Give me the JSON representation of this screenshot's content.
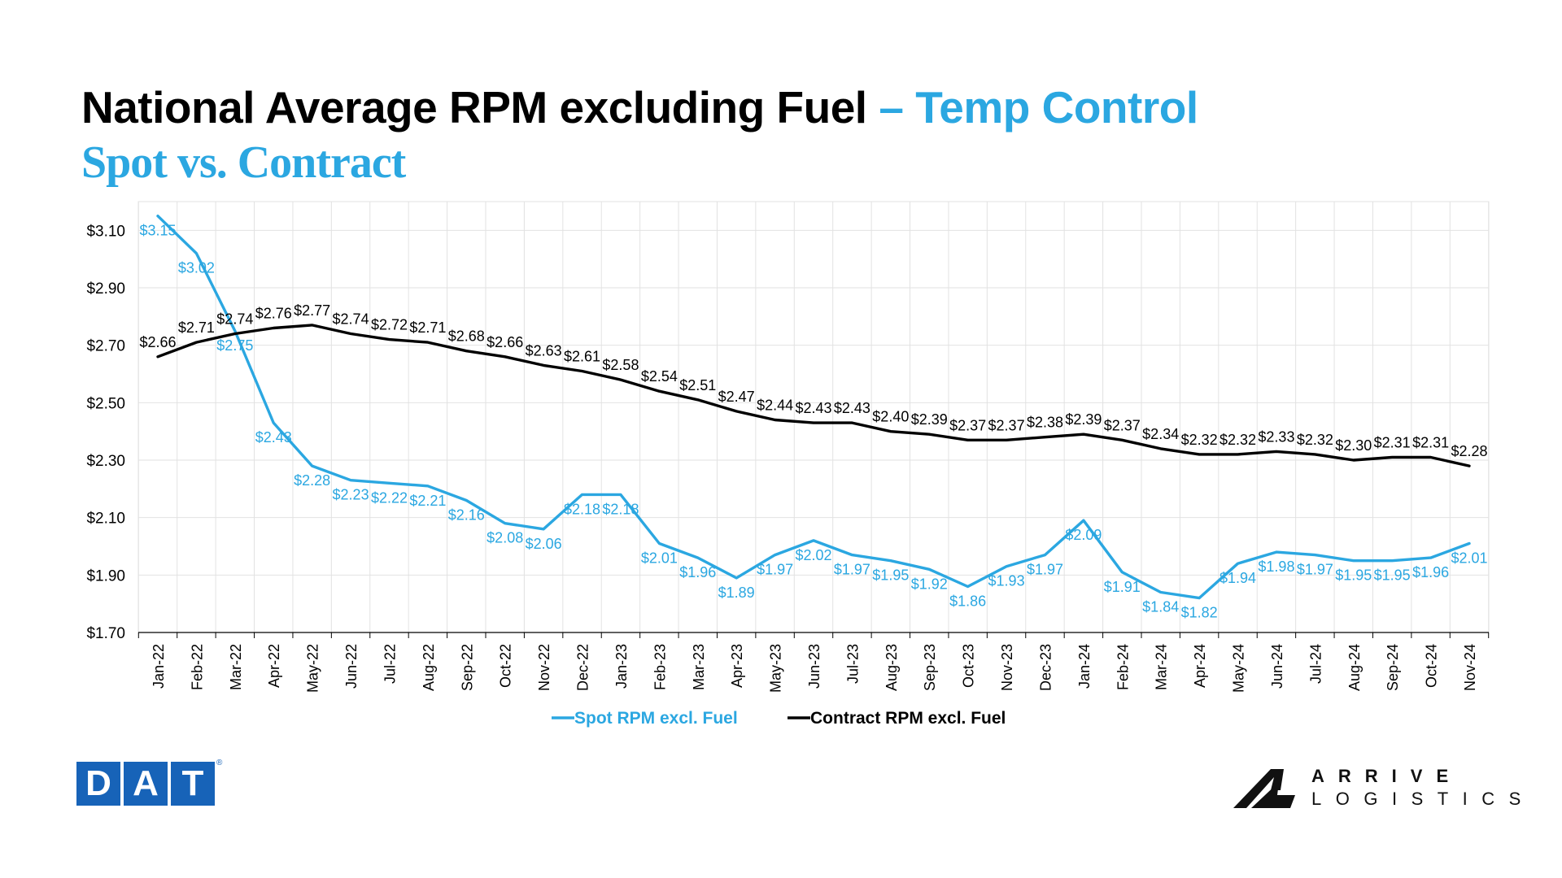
{
  "header": {
    "title_main": "National Average RPM excluding Fuel",
    "title_accent": "– Temp Control",
    "subtitle": "Spot vs. Contract"
  },
  "colors": {
    "spot": "#2ba7e1",
    "contract": "#000000",
    "grid": "#e2e2e2",
    "dat_blue": "#1763b8"
  },
  "logos": {
    "dat": [
      "D",
      "A",
      "T"
    ],
    "dat_reg": "®",
    "arrive_line1": "ARRIVE",
    "arrive_line2": "LOGISTICS"
  },
  "chart_data": {
    "type": "line",
    "title": "",
    "xlabel": "",
    "ylabel": "",
    "grid": true,
    "legend_position": "bottom",
    "ylim": [
      1.7,
      3.2
    ],
    "y_ticks": [
      "$1.70",
      "$1.90",
      "$2.10",
      "$2.30",
      "$2.50",
      "$2.70",
      "$2.90",
      "$3.10"
    ],
    "y_tick_values": [
      1.7,
      1.9,
      2.1,
      2.3,
      2.5,
      2.7,
      2.9,
      3.1
    ],
    "categories": [
      "Jan-22",
      "Feb-22",
      "Mar-22",
      "Apr-22",
      "May-22",
      "Jun-22",
      "Jul-22",
      "Aug-22",
      "Sep-22",
      "Oct-22",
      "Nov-22",
      "Dec-22",
      "Jan-23",
      "Feb-23",
      "Mar-23",
      "Apr-23",
      "May-23",
      "Jun-23",
      "Jul-23",
      "Aug-23",
      "Sep-23",
      "Oct-23",
      "Nov-23",
      "Dec-23",
      "Jan-24",
      "Feb-24",
      "Mar-24",
      "Apr-24",
      "May-24",
      "Jun-24",
      "Jul-24",
      "Aug-24",
      "Sep-24",
      "Oct-24",
      "Nov-24"
    ],
    "series": [
      {
        "name": "Spot RPM excl. Fuel",
        "color": "#2ba7e1",
        "values": [
          3.15,
          3.02,
          2.75,
          2.43,
          2.28,
          2.23,
          2.22,
          2.21,
          2.16,
          2.08,
          2.06,
          2.18,
          2.18,
          2.01,
          1.96,
          1.89,
          1.97,
          2.02,
          1.97,
          1.95,
          1.92,
          1.86,
          1.93,
          1.97,
          2.09,
          1.91,
          1.84,
          1.82,
          1.94,
          1.98,
          1.97,
          1.95,
          1.95,
          1.96,
          2.01
        ],
        "labels": [
          "$3.15",
          "$3.02",
          "$2.75",
          "$2.43",
          "$2.28",
          "$2.23",
          "$2.22",
          "$2.21",
          "$2.16",
          "$2.08",
          "$2.06",
          "$2.18",
          "$2.18",
          "$2.01",
          "$1.96",
          "$1.89",
          "$1.97",
          "$2.02",
          "$1.97",
          "$1.95",
          "$1.92",
          "$1.86",
          "$1.93",
          "$1.97",
          "$2.09",
          "$1.91",
          "$1.84",
          "$1.82",
          "$1.94",
          "$1.98",
          "$1.97",
          "$1.95",
          "$1.95",
          "$1.96",
          "$2.01"
        ]
      },
      {
        "name": "Contract RPM excl. Fuel",
        "color": "#000000",
        "values": [
          2.66,
          2.71,
          2.74,
          2.76,
          2.77,
          2.74,
          2.72,
          2.71,
          2.68,
          2.66,
          2.63,
          2.61,
          2.58,
          2.54,
          2.51,
          2.47,
          2.44,
          2.43,
          2.43,
          2.4,
          2.39,
          2.37,
          2.37,
          2.38,
          2.39,
          2.37,
          2.34,
          2.32,
          2.32,
          2.33,
          2.32,
          2.3,
          2.31,
          2.31,
          2.28
        ],
        "labels": [
          "$2.66",
          "$2.71",
          "$2.74",
          "$2.76",
          "$2.77",
          "$2.74",
          "$2.72",
          "$2.71",
          "$2.68",
          "$2.66",
          "$2.63",
          "$2.61",
          "$2.58",
          "$2.54",
          "$2.51",
          "$2.47",
          "$2.44",
          "$2.43",
          "$2.43",
          "$2.40",
          "$2.39",
          "$2.37",
          "$2.37",
          "$2.38",
          "$2.39",
          "$2.37",
          "$2.34",
          "$2.32",
          "$2.32",
          "$2.33",
          "$2.32",
          "$2.30",
          "$2.31",
          "$2.31",
          "$2.28"
        ]
      }
    ]
  }
}
